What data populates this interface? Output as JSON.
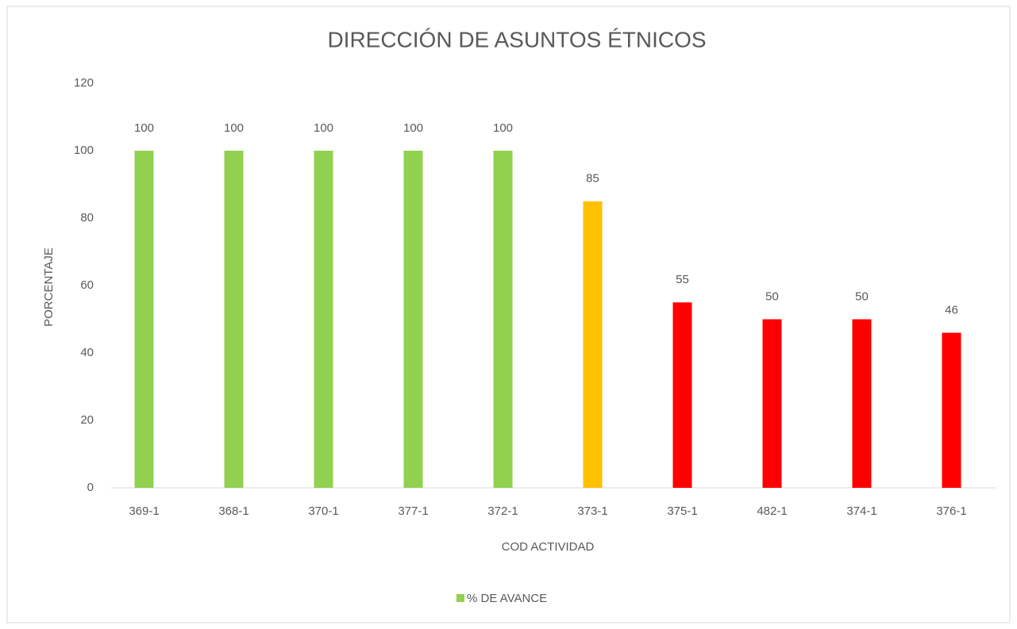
{
  "chart_data": {
    "type": "bar",
    "title": "DIRECCIÓN DE ASUNTOS ÉTNICOS",
    "x_label": "COD ACTIVIDAD",
    "y_label": "PORCENTAJE",
    "categories": [
      "369-1",
      "368-1",
      "370-1",
      "377-1",
      "372-1",
      "373-1",
      "375-1",
      "482-1",
      "374-1",
      "376-1"
    ],
    "series": [
      {
        "name": "% DE AVANCE",
        "color": "#92d050",
        "values": [
          100,
          100,
          100,
          100,
          100,
          85,
          55,
          50,
          50,
          46
        ],
        "colors": [
          "#92d050",
          "#92d050",
          "#92d050",
          "#92d050",
          "#92d050",
          "#ffc000",
          "#ff0000",
          "#ff0000",
          "#ff0000",
          "#ff0000"
        ]
      }
    ],
    "ylim": [
      0,
      120
    ],
    "yticks": [
      0,
      20,
      40,
      60,
      80,
      100,
      120
    ],
    "grid": false,
    "legend": "bottom"
  }
}
